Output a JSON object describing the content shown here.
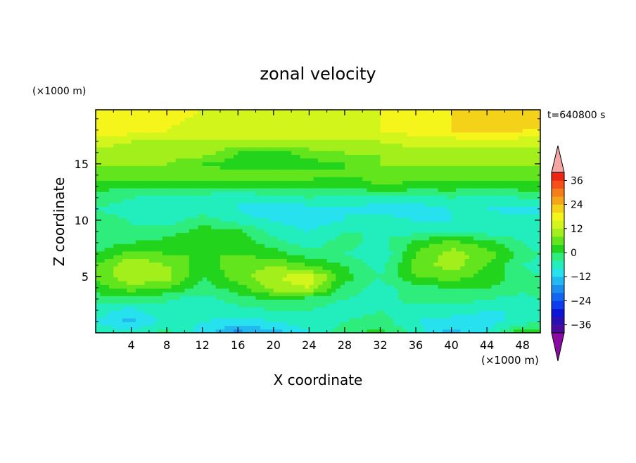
{
  "chart_data": {
    "type": "heatmap",
    "title": "zonal velocity",
    "xlabel": "X coordinate",
    "ylabel": "Z coordinate",
    "x_unit_label": "(×1000 m)",
    "y_unit_label": "(×1000 m)",
    "time_label": "t=640800 s",
    "xlim": [
      0,
      50
    ],
    "ylim": [
      0,
      19.8
    ],
    "x_ticks": [
      {
        "value": 4,
        "label": "4"
      },
      {
        "value": 8,
        "label": "8"
      },
      {
        "value": 12,
        "label": "12"
      },
      {
        "value": 16,
        "label": "16"
      },
      {
        "value": 20,
        "label": "20"
      },
      {
        "value": 24,
        "label": "24"
      },
      {
        "value": 28,
        "label": "28"
      },
      {
        "value": 32,
        "label": "32"
      },
      {
        "value": 36,
        "label": "36"
      },
      {
        "value": 40,
        "label": "40"
      },
      {
        "value": 44,
        "label": "44"
      },
      {
        "value": 48,
        "label": "48"
      }
    ],
    "y_ticks": [
      {
        "value": 5,
        "label": "5"
      },
      {
        "value": 10,
        "label": "10"
      },
      {
        "value": 15,
        "label": "15"
      }
    ],
    "colorbar": {
      "levels": [
        -40,
        -36,
        -32,
        -28,
        -24,
        -20,
        -16,
        -12,
        -8,
        -4,
        0,
        4,
        8,
        12,
        16,
        20,
        24,
        28,
        32,
        36,
        40
      ],
      "colors": [
        "#4a0b9c",
        "#2a10b4",
        "#0e14d6",
        "#0c3cf0",
        "#1266f0",
        "#1b8ef0",
        "#22b8f0",
        "#27e2ee",
        "#22eebd",
        "#2eed7c",
        "#22d41c",
        "#62e51c",
        "#a2ef1c",
        "#d2f51c",
        "#f5f51c",
        "#f5d21a",
        "#f5a51a",
        "#f57d18",
        "#f55018",
        "#ee2414"
      ],
      "under_color": "#8b0aa4",
      "over_color": "#f6a5a5",
      "tick_labels": [
        {
          "value": 36,
          "label": "36"
        },
        {
          "value": 24,
          "label": "24"
        },
        {
          "value": 12,
          "label": "12"
        },
        {
          "value": 0,
          "label": "0"
        },
        {
          "value": -12,
          "label": "−12"
        },
        {
          "value": -24,
          "label": "−24"
        },
        {
          "value": -36,
          "label": "−36"
        }
      ]
    },
    "field": {
      "description_rows_bottom_to_top": true,
      "x_points": [
        0,
        4,
        8,
        12,
        16,
        20,
        24,
        28,
        32,
        36,
        40,
        44,
        48,
        50
      ],
      "z_points": [
        0,
        1,
        2,
        3,
        4,
        5,
        6,
        7,
        8,
        9,
        10,
        11,
        12,
        13,
        14,
        15,
        16,
        17,
        18,
        19.8
      ],
      "values": [
        [
          -6,
          -4,
          -3,
          -10,
          -18,
          -14,
          -8,
          -2,
          2,
          -6,
          -14,
          -8,
          4,
          2
        ],
        [
          -8,
          -14,
          -6,
          -8,
          -10,
          -8,
          -6,
          -4,
          -2,
          -8,
          -10,
          -10,
          -6,
          -4
        ],
        [
          -6,
          -10,
          -4,
          -4,
          -6,
          -4,
          -4,
          -6,
          -4,
          -6,
          -6,
          -8,
          -8,
          -6
        ],
        [
          -2,
          -2,
          -4,
          -6,
          -2,
          0,
          -2,
          -4,
          -6,
          -2,
          -2,
          -4,
          -6,
          -4
        ],
        [
          2,
          6,
          4,
          -2,
          2,
          10,
          12,
          -2,
          -6,
          -2,
          0,
          0,
          -2,
          -2
        ],
        [
          4,
          12,
          10,
          0,
          6,
          12,
          14,
          2,
          -4,
          4,
          6,
          2,
          -2,
          -4
        ],
        [
          4,
          12,
          8,
          2,
          6,
          8,
          4,
          0,
          -6,
          6,
          10,
          4,
          -4,
          -6
        ],
        [
          0,
          6,
          4,
          4,
          4,
          2,
          -2,
          -4,
          -8,
          4,
          10,
          6,
          -2,
          -4
        ],
        [
          -2,
          0,
          2,
          4,
          2,
          -2,
          -6,
          -2,
          -6,
          2,
          6,
          2,
          -4,
          -6
        ],
        [
          -4,
          -4,
          -2,
          2,
          2,
          -6,
          -8,
          -4,
          -4,
          -6,
          -4,
          -6,
          -6,
          -8
        ],
        [
          -2,
          -4,
          -6,
          -2,
          -6,
          -8,
          -10,
          -8,
          -6,
          -8,
          -8,
          -6,
          -6,
          -8
        ],
        [
          -4,
          -6,
          -8,
          -6,
          -8,
          -12,
          -10,
          -8,
          -10,
          -10,
          -8,
          -8,
          -10,
          -8
        ],
        [
          -2,
          -4,
          -6,
          -6,
          -8,
          -6,
          -4,
          -6,
          -6,
          -6,
          -4,
          -6,
          -4,
          -4
        ],
        [
          2,
          0,
          2,
          0,
          0,
          2,
          0,
          0,
          4,
          2,
          2,
          0,
          2,
          2
        ],
        [
          6,
          6,
          6,
          6,
          6,
          6,
          6,
          4,
          6,
          6,
          6,
          6,
          6,
          6
        ],
        [
          8,
          8,
          8,
          4,
          2,
          2,
          2,
          4,
          8,
          8,
          8,
          8,
          8,
          8
        ],
        [
          10,
          10,
          10,
          10,
          4,
          2,
          6,
          8,
          8,
          10,
          10,
          10,
          10,
          10
        ],
        [
          14,
          12,
          12,
          12,
          12,
          12,
          12,
          12,
          12,
          14,
          14,
          14,
          14,
          14
        ],
        [
          18,
          18,
          16,
          14,
          14,
          14,
          14,
          14,
          16,
          18,
          20,
          22,
          20,
          20
        ],
        [
          20,
          20,
          18,
          16,
          14,
          14,
          14,
          14,
          16,
          18,
          20,
          20,
          20,
          20
        ]
      ]
    }
  }
}
